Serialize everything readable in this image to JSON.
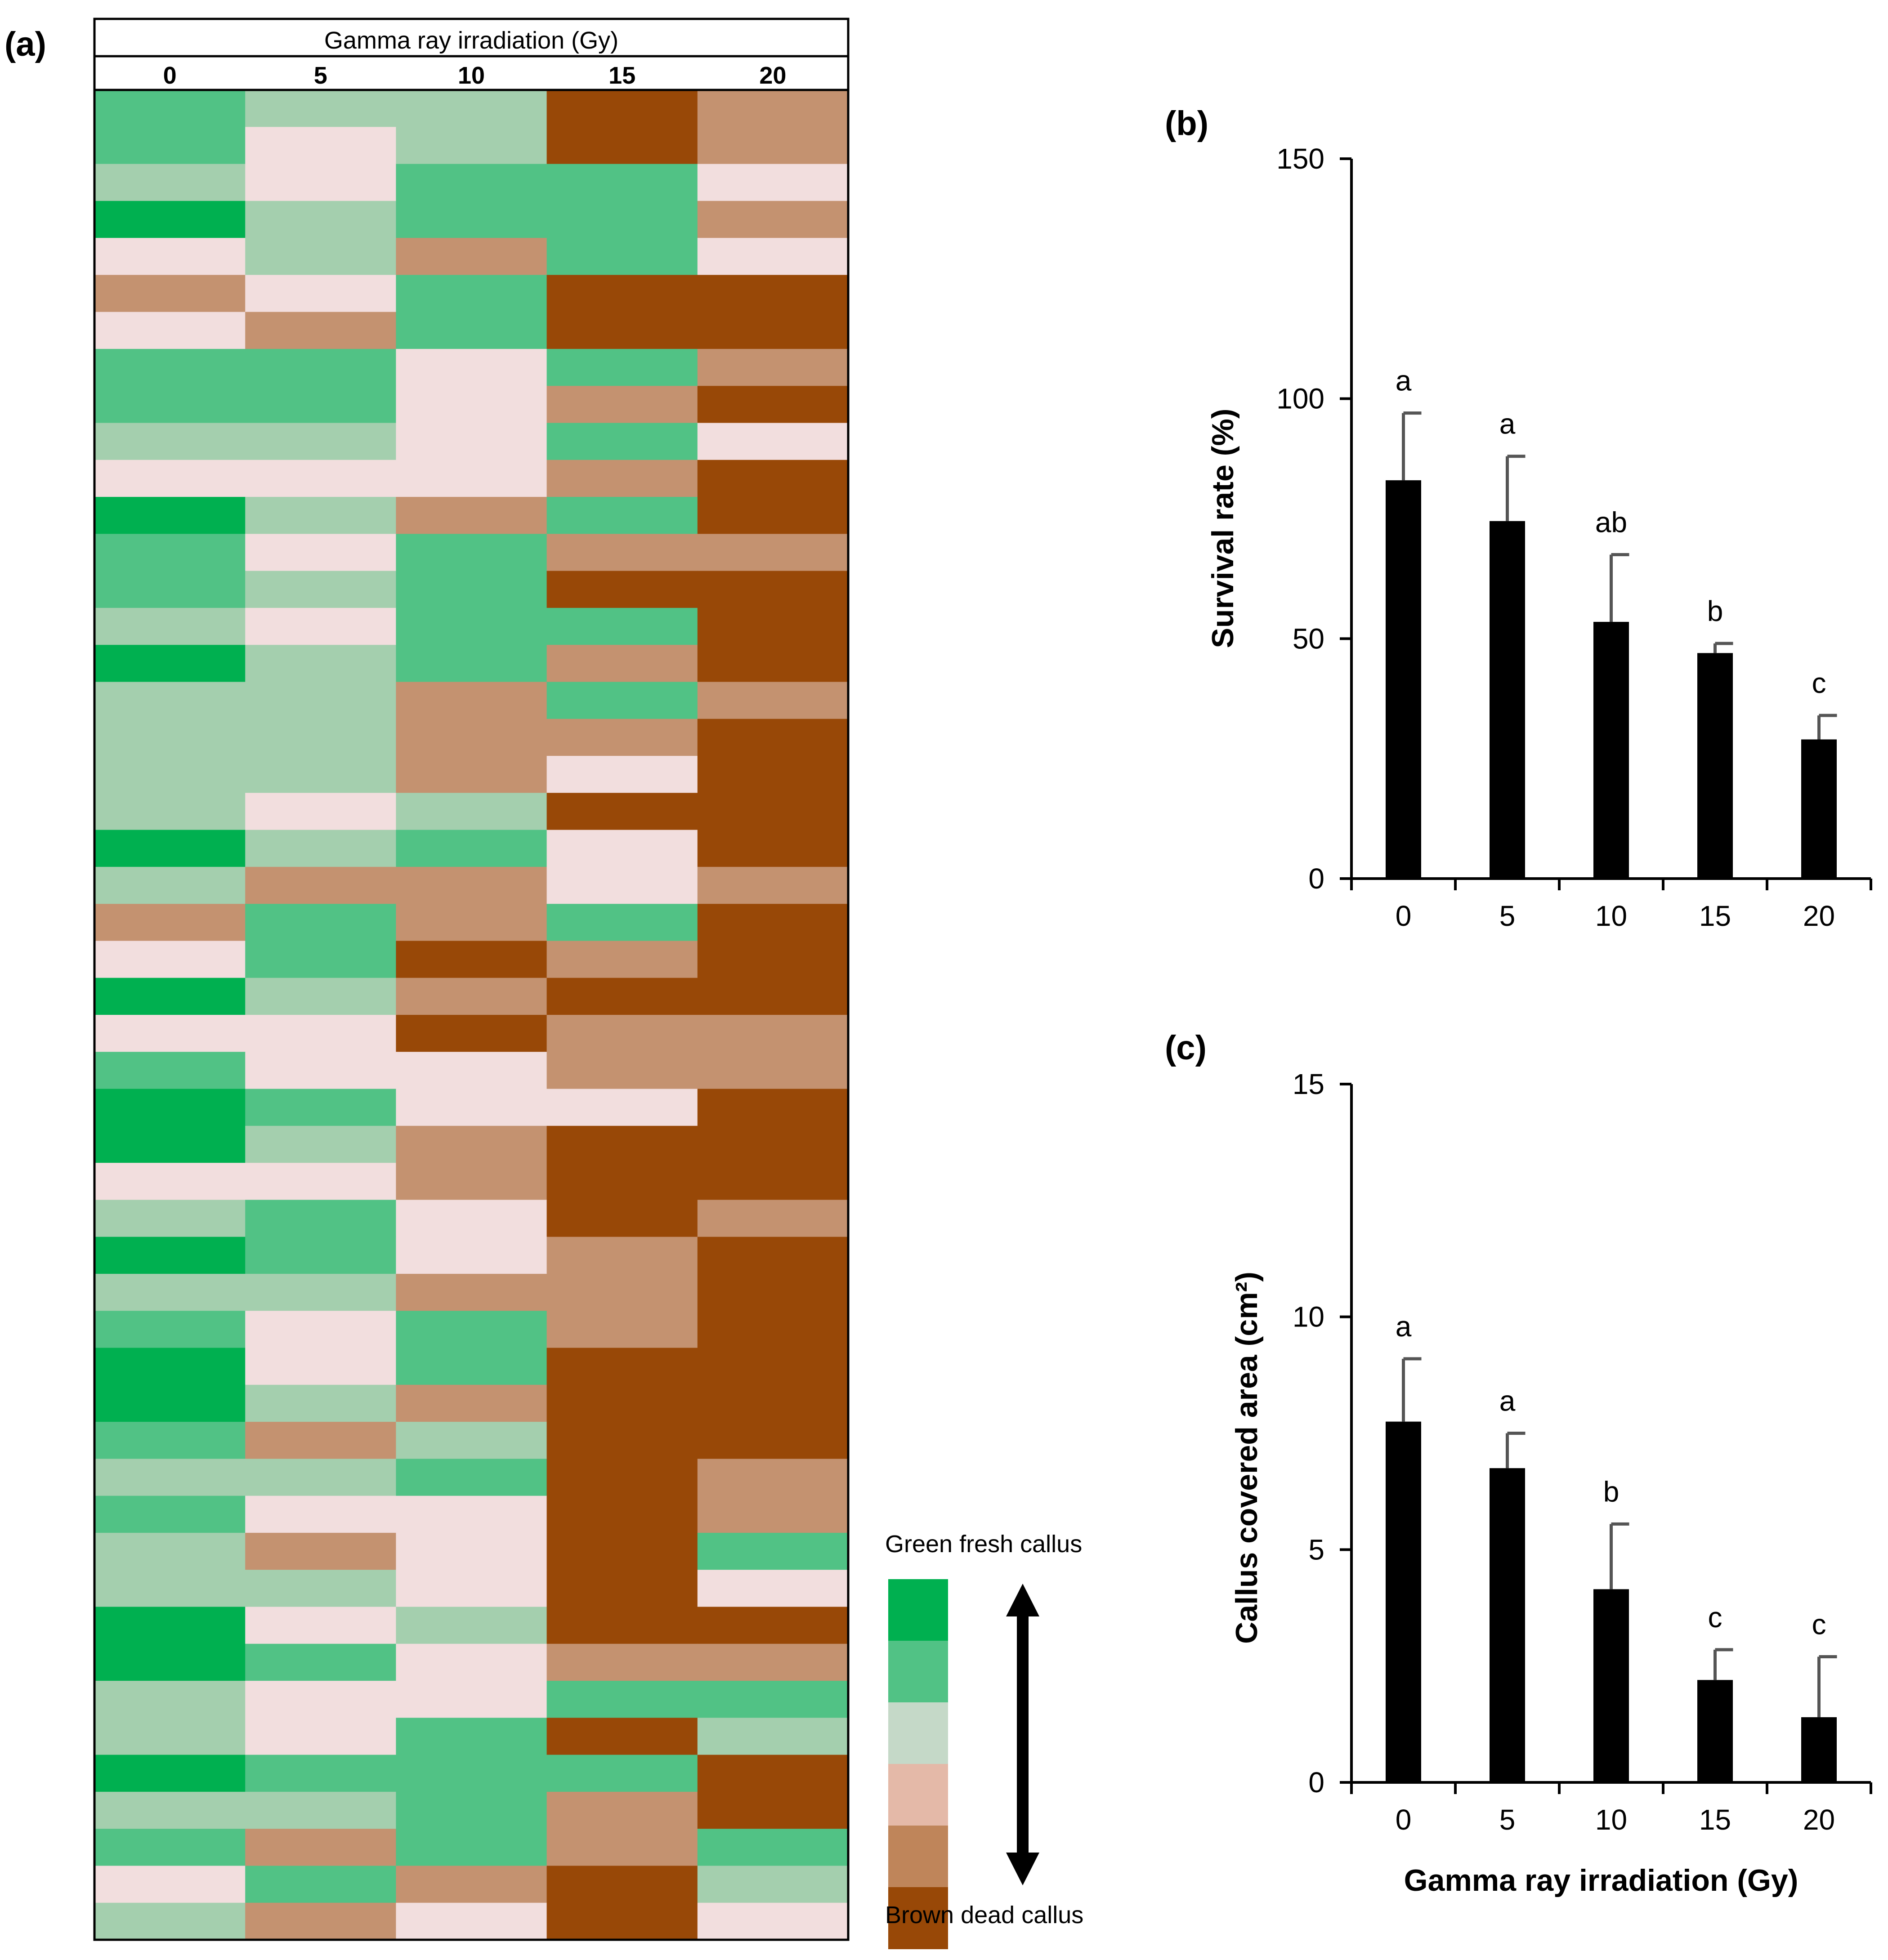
{
  "colors": {
    "scale": [
      "#00b050",
      "#51c285",
      "#a4cfae",
      "#f2dede",
      "#c49270",
      "#984807"
    ],
    "legend": [
      "#00b050",
      "#51c285",
      "#c5d9c8",
      "#e4b9a8",
      "#bf855a",
      "#984807"
    ],
    "bar": "#000000",
    "error_bar": "#555555"
  },
  "chart_data": [
    {
      "type": "heatmap",
      "panel_label": "(a)",
      "header": "Gamma ray irradiation (Gy)",
      "columns": [
        "0",
        "5",
        "10",
        "15",
        "20"
      ],
      "value_meaning": "1 = green fresh callus ... 6 = brown dead callus",
      "rows": [
        [
          2,
          3,
          3,
          6,
          5
        ],
        [
          2,
          4,
          3,
          6,
          5
        ],
        [
          3,
          4,
          2,
          2,
          4
        ],
        [
          1,
          3,
          2,
          2,
          5
        ],
        [
          4,
          3,
          5,
          2,
          4
        ],
        [
          5,
          4,
          2,
          6,
          6
        ],
        [
          4,
          5,
          2,
          6,
          6
        ],
        [
          2,
          2,
          4,
          2,
          5
        ],
        [
          2,
          2,
          4,
          5,
          6
        ],
        [
          3,
          3,
          4,
          2,
          4
        ],
        [
          4,
          4,
          4,
          5,
          6
        ],
        [
          1,
          3,
          5,
          2,
          6
        ],
        [
          2,
          4,
          2,
          5,
          5
        ],
        [
          2,
          3,
          2,
          6,
          6
        ],
        [
          3,
          4,
          2,
          2,
          6
        ],
        [
          1,
          3,
          2,
          5,
          6
        ],
        [
          3,
          3,
          5,
          2,
          5
        ],
        [
          3,
          3,
          5,
          5,
          6
        ],
        [
          3,
          3,
          5,
          4,
          6
        ],
        [
          3,
          4,
          3,
          6,
          6
        ],
        [
          1,
          3,
          2,
          4,
          6
        ],
        [
          3,
          5,
          5,
          4,
          5
        ],
        [
          5,
          2,
          5,
          2,
          6
        ],
        [
          4,
          2,
          6,
          5,
          6
        ],
        [
          1,
          3,
          5,
          6,
          6
        ],
        [
          4,
          4,
          6,
          5,
          5
        ],
        [
          2,
          4,
          4,
          5,
          5
        ],
        [
          1,
          2,
          4,
          4,
          6
        ],
        [
          1,
          3,
          5,
          6,
          6
        ],
        [
          4,
          4,
          5,
          6,
          6
        ],
        [
          3,
          2,
          4,
          6,
          5
        ],
        [
          1,
          2,
          4,
          5,
          6
        ],
        [
          3,
          3,
          5,
          5,
          6
        ],
        [
          2,
          4,
          2,
          5,
          6
        ],
        [
          1,
          4,
          2,
          6,
          6
        ],
        [
          1,
          3,
          5,
          6,
          6
        ],
        [
          2,
          5,
          3,
          6,
          6
        ],
        [
          3,
          3,
          2,
          6,
          5
        ],
        [
          2,
          4,
          4,
          6,
          5
        ],
        [
          3,
          5,
          4,
          6,
          2
        ],
        [
          3,
          3,
          4,
          6,
          4
        ],
        [
          1,
          4,
          3,
          6,
          6
        ],
        [
          1,
          2,
          4,
          5,
          5
        ],
        [
          3,
          4,
          4,
          2,
          2
        ],
        [
          3,
          4,
          2,
          6,
          3
        ],
        [
          1,
          2,
          2,
          2,
          6
        ],
        [
          3,
          3,
          2,
          5,
          6
        ],
        [
          2,
          5,
          2,
          5,
          2
        ],
        [
          4,
          2,
          5,
          6,
          3
        ],
        [
          3,
          5,
          4,
          6,
          4
        ]
      ],
      "legend": {
        "top_label": "Green fresh callus",
        "bottom_label": "Brown dead callus",
        "arrow_icon": "double-arrow-vertical-icon"
      }
    },
    {
      "type": "bar",
      "panel_label": "(b)",
      "categories": [
        "0",
        "5",
        "10",
        "15",
        "20"
      ],
      "values": [
        83,
        74.5,
        53.5,
        47,
        29
      ],
      "errors": [
        14,
        13.5,
        14,
        2,
        5
      ],
      "significance": [
        "a",
        "a",
        "ab",
        "b",
        "c"
      ],
      "xlabel": "",
      "ylabel": "Survival rate (%)",
      "ylim": [
        0,
        150
      ],
      "yticks": [
        "0",
        "50",
        "100",
        "150"
      ]
    },
    {
      "type": "bar",
      "panel_label": "(c)",
      "categories": [
        "0",
        "5",
        "10",
        "15",
        "20"
      ],
      "values": [
        7.75,
        6.75,
        4.15,
        2.2,
        1.4
      ],
      "errors": [
        1.35,
        0.75,
        1.4,
        0.65,
        1.3
      ],
      "significance": [
        "a",
        "a",
        "b",
        "c",
        "c"
      ],
      "xlabel": "Gamma ray irradiation (Gy)",
      "ylabel": "Callus covered area (cm²)",
      "ylim": [
        0,
        15
      ],
      "yticks": [
        "0",
        "5",
        "10",
        "15"
      ]
    }
  ]
}
